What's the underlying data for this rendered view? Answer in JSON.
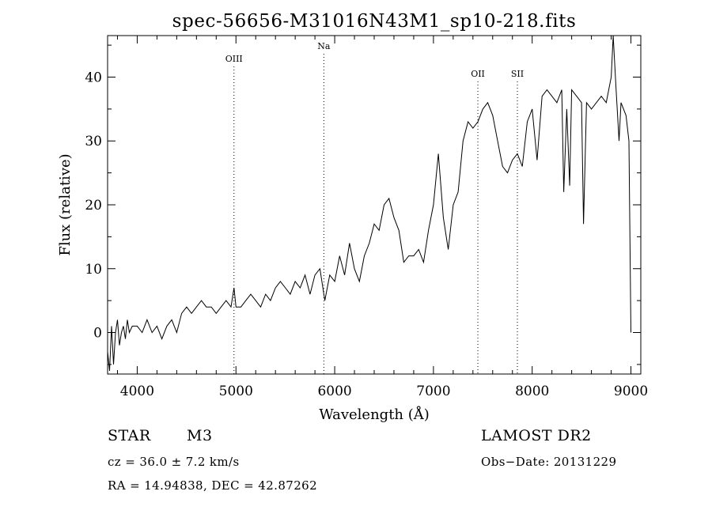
{
  "chart_data": {
    "type": "line",
    "title": "spec-56656-M31016N43M1_sp10-218.fits",
    "xlabel": "Wavelength (Å)",
    "ylabel": "Flux (relative)",
    "xlim": [
      3700,
      9100
    ],
    "ylim": [
      -6.5,
      46.5
    ],
    "xticks": [
      4000,
      5000,
      6000,
      7000,
      8000,
      9000
    ],
    "yticks": [
      0,
      10,
      20,
      30,
      40
    ],
    "grid": false,
    "line_markers": [
      {
        "label": "OIII",
        "x": 4980
      },
      {
        "label": "Na",
        "x": 5890
      },
      {
        "label": "OII",
        "x": 7450
      },
      {
        "label": "SII",
        "x": 7850
      }
    ],
    "series": [
      {
        "x": [
          3700,
          3720,
          3740,
          3760,
          3780,
          3800,
          3820,
          3840,
          3860,
          3880,
          3900,
          3920,
          3950,
          4000,
          4050,
          4100,
          4150,
          4200,
          4250,
          4300,
          4350,
          4400,
          4450,
          4500,
          4550,
          4600,
          4650,
          4700,
          4750,
          4800,
          4850,
          4900,
          4950,
          4980,
          5000,
          5050,
          5100,
          5150,
          5200,
          5250,
          5300,
          5350,
          5400,
          5450,
          5500,
          5550,
          5600,
          5650,
          5700,
          5750,
          5800,
          5850,
          5900,
          5950,
          6000,
          6050,
          6100,
          6150,
          6200,
          6250,
          6300,
          6350,
          6400,
          6450,
          6500,
          6550,
          6600,
          6650,
          6700,
          6750,
          6800,
          6850,
          6900,
          6950,
          7000,
          7050,
          7100,
          7150,
          7200,
          7250,
          7300,
          7350,
          7400,
          7450,
          7500,
          7550,
          7600,
          7650,
          7700,
          7750,
          7800,
          7850,
          7900,
          7950,
          8000,
          8050,
          8100,
          8150,
          8200,
          8250,
          8300,
          8320,
          8350,
          8380,
          8400,
          8450,
          8500,
          8520,
          8550,
          8600,
          8650,
          8700,
          8750,
          8800,
          8820,
          8850,
          8880,
          8900,
          8950,
          8980,
          9000
        ],
        "y": [
          -3,
          -6,
          1,
          -5,
          0,
          2,
          -2,
          0,
          1,
          -1,
          2,
          0,
          1,
          1,
          0,
          2,
          0,
          1,
          -1,
          1,
          2,
          0,
          3,
          4,
          3,
          4,
          5,
          4,
          4,
          3,
          4,
          5,
          4,
          7,
          4,
          4,
          5,
          6,
          5,
          4,
          6,
          5,
          7,
          8,
          7,
          6,
          8,
          7,
          9,
          6,
          9,
          10,
          5,
          9,
          8,
          12,
          9,
          14,
          10,
          8,
          12,
          14,
          17,
          16,
          20,
          21,
          18,
          16,
          11,
          12,
          12,
          13,
          11,
          16,
          20,
          28,
          18,
          13,
          20,
          22,
          30,
          33,
          32,
          33,
          35,
          36,
          34,
          30,
          26,
          25,
          27,
          28,
          26,
          33,
          35,
          27,
          37,
          38,
          37,
          36,
          38,
          22,
          35,
          23,
          38,
          37,
          36,
          17,
          36,
          35,
          36,
          37,
          36,
          40,
          47,
          38,
          30,
          36,
          34,
          30,
          0
        ]
      }
    ]
  },
  "info": {
    "class_label": "STAR",
    "subclass": "M3",
    "survey": "LAMOST DR2",
    "cz": "cz = 36.0 ± 7.2 km/s",
    "obs_date": "Obs−Date: 20131229",
    "coords": "RA =  14.94838, DEC =  42.87262"
  }
}
